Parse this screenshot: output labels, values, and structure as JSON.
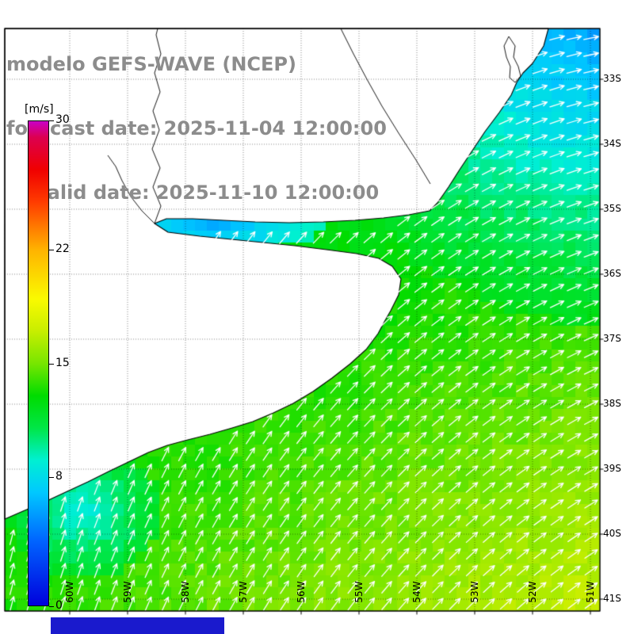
{
  "title": {
    "model_line": "modelo GEFS-WAVE (NCEP)",
    "forecast_line": "forecast date: 2025-11-04 12:00:00",
    "valid_line": "valid date: 2025-11-10 12:00:00",
    "color": "#8c8c8c"
  },
  "colorbar": {
    "unit_label": "[m/s]",
    "min": 0,
    "max": 30,
    "tick_values": [
      30,
      22,
      15,
      8,
      0
    ],
    "stops": [
      {
        "v": 0,
        "color": "#0000dc"
      },
      {
        "v": 4,
        "color": "#0064ff"
      },
      {
        "v": 7,
        "color": "#00c8ff"
      },
      {
        "v": 9,
        "color": "#00f0d2"
      },
      {
        "v": 11,
        "color": "#00e646"
      },
      {
        "v": 13,
        "color": "#00dc00"
      },
      {
        "v": 15,
        "color": "#78e600"
      },
      {
        "v": 17,
        "color": "#c8ee00"
      },
      {
        "v": 19,
        "color": "#fafa00"
      },
      {
        "v": 22,
        "color": "#ffb400"
      },
      {
        "v": 25,
        "color": "#ff3c00"
      },
      {
        "v": 27,
        "color": "#f00000"
      },
      {
        "v": 29,
        "color": "#dc0050"
      },
      {
        "v": 30,
        "color": "#c800c8"
      }
    ]
  },
  "map": {
    "lat_labels": [
      "33S",
      "34S",
      "35S",
      "36S",
      "37S",
      "38S",
      "39S",
      "40S",
      "41S"
    ],
    "lon_labels": [
      "60W",
      "59W",
      "58W",
      "57W",
      "56W",
      "55W",
      "54W",
      "53W",
      "52W",
      "51W"
    ]
  },
  "decorations": {
    "bottom_strip_color": "#1a1acd"
  },
  "chart_data": {
    "type": "heatmap",
    "title": "GEFS-WAVE (NCEP) wind speed field with direction arrows",
    "variable": "wind speed",
    "units": "m/s",
    "colorbar_range": [
      0,
      30
    ],
    "colorbar_ticks": [
      0,
      8,
      15,
      22,
      30
    ],
    "lat_range": [
      "33S",
      "41S"
    ],
    "lon_range": [
      "60W",
      "51W"
    ],
    "overlay": "white wind-direction arrows over ocean, rotating from N (southwest) to ENE (northeast)",
    "regions": [
      {
        "area": "offshore northeast corner (near 33S 51W)",
        "wind_speed_ms": [
          5,
          8
        ]
      },
      {
        "area": "band along Uruguay / S Brazil coast",
        "wind_speed_ms": [
          7,
          10
        ]
      },
      {
        "area": "Rio de la Plata estuary",
        "wind_speed_ms": [
          6,
          9
        ]
      },
      {
        "area": "central continental shelf",
        "wind_speed_ms": [
          11,
          14
        ]
      },
      {
        "area": "coastal patch near 39S 60W",
        "wind_speed_ms": [
          8,
          11
        ]
      },
      {
        "area": "southern and southeastern offshore",
        "wind_speed_ms": [
          15,
          17
        ]
      },
      {
        "area": "land (Argentina / Uruguay / S Brazil)",
        "wind_speed_ms": null
      }
    ]
  }
}
